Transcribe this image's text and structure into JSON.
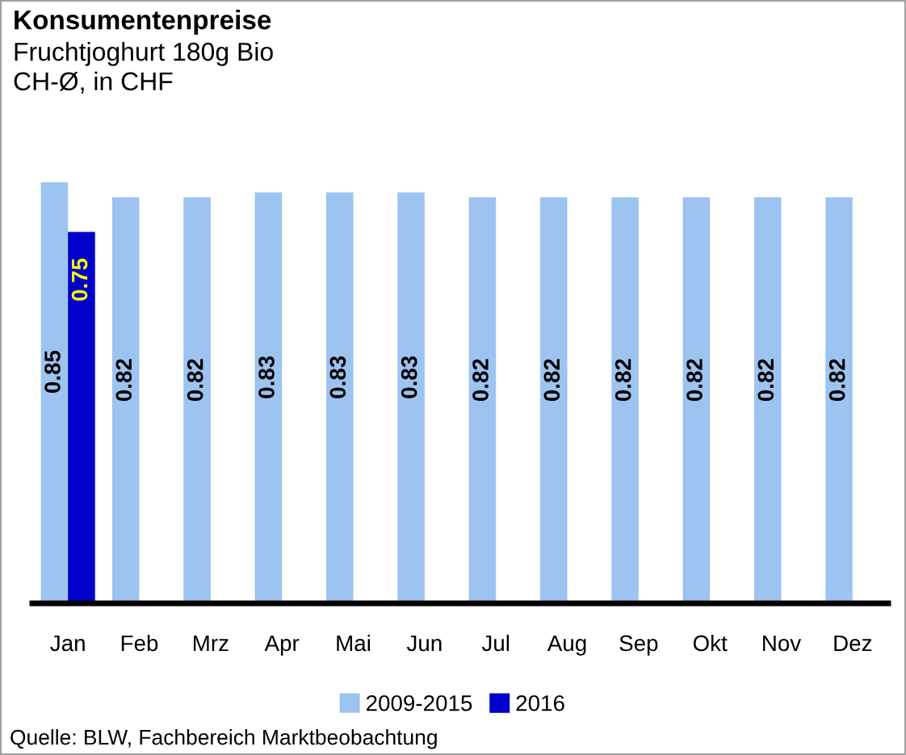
{
  "chart_data": {
    "type": "bar",
    "title": "Konsumentenpreise",
    "subtitle": "Fruchtjoghurt 180g Bio\nCH-Ø, in CHF",
    "categories": [
      "Jan",
      "Feb",
      "Mrz",
      "Apr",
      "Mai",
      "Jun",
      "Jul",
      "Aug",
      "Sep",
      "Okt",
      "Nov",
      "Dez"
    ],
    "series": [
      {
        "name": "2009-2015",
        "color": "#9dc3f0",
        "values": [
          0.85,
          0.82,
          0.82,
          0.83,
          0.83,
          0.83,
          0.82,
          0.82,
          0.82,
          0.82,
          0.82,
          0.82
        ]
      },
      {
        "name": "2016",
        "color": "#0000cc",
        "values": [
          0.75,
          null,
          null,
          null,
          null,
          null,
          null,
          null,
          null,
          null,
          null,
          null
        ]
      }
    ],
    "data_labels": true,
    "legend": "bottom",
    "grid": false,
    "annotations": [
      "Quelle: BLW, Fachbereich Marktbeobachtung"
    ]
  }
}
